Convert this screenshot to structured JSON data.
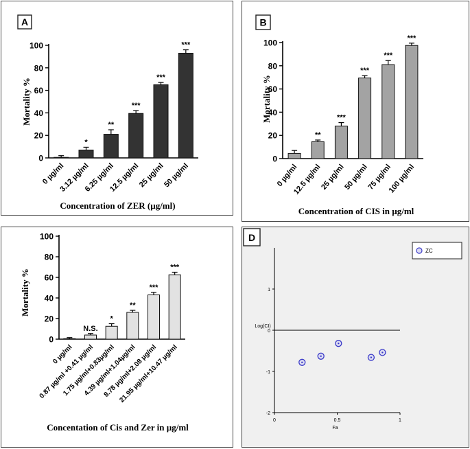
{
  "chart_data": [
    {
      "type": "bar",
      "panel_label": "A",
      "xlabel": "Concentration of ZER (µg/ml)",
      "ylabel": "Mortality %",
      "ylim": [
        0,
        100
      ],
      "yticks": [
        0,
        20,
        40,
        60,
        80,
        100
      ],
      "bar_color": "#333333",
      "categories": [
        "0 µg/ml",
        "3.12 µg/ml",
        "6.25 µg/ml",
        "12.5 µg/ml",
        "25 µg/ml",
        "50 µg/ml"
      ],
      "values": [
        0.5,
        7,
        21,
        39.5,
        65,
        93
      ],
      "errors": [
        1.5,
        2.5,
        4,
        2.5,
        2,
        3
      ],
      "significance": [
        "",
        "*",
        "**",
        "***",
        "***",
        "***"
      ]
    },
    {
      "type": "bar",
      "panel_label": "B",
      "xlabel": "Concentration of CIS in µg/ml",
      "ylabel": "Mortality %",
      "ylim": [
        0,
        100
      ],
      "yticks": [
        0,
        20,
        40,
        60,
        80,
        100
      ],
      "bar_color": "#a3a3a3",
      "categories": [
        "0 µg/ml",
        "12.5 µg/ml",
        "25 µg/ml",
        "50 µg/ml",
        "75 µg/ml",
        "100 µg/ml"
      ],
      "values": [
        4.5,
        14.5,
        28,
        69.5,
        81,
        97.5
      ],
      "errors": [
        2.5,
        1.5,
        3,
        2,
        3.5,
        2
      ],
      "significance": [
        "",
        "**",
        "***",
        "***",
        "***",
        "***"
      ]
    },
    {
      "type": "bar",
      "panel_label": "",
      "xlabel": "Concentation of Cis and Zer in µg/ml",
      "ylabel": "Mortality %",
      "ylim": [
        0,
        100
      ],
      "yticks": [
        0,
        20,
        40,
        60,
        80,
        100
      ],
      "bar_color": "#e2e2e2",
      "categories": [
        "0 µg/ml",
        "0.87 µg/ml +0.41 µg/ml",
        "1.75 µg/ml+0.83µg/ml",
        "4.39 µg/ml+1.04µg/ml",
        "8.78 µg/ml+2.08 µg/ml",
        "21.95 µg/ml+10.47 µg/ml"
      ],
      "values": [
        0.5,
        4,
        12.5,
        26,
        43,
        62.5
      ],
      "errors": [
        1,
        1.5,
        2.5,
        2,
        2.5,
        2.5
      ],
      "significance": [
        "",
        "N.S.",
        "*",
        "**",
        "***",
        "***"
      ]
    },
    {
      "type": "scatter",
      "panel_label": "D",
      "xlabel": "Fa",
      "ylabel": "Log(CI)",
      "xlim": [
        0,
        1
      ],
      "ylim": [
        -2,
        2
      ],
      "xticks": [
        0,
        0.5,
        1
      ],
      "xtick_labels": [
        "0",
        "0.5",
        "1"
      ],
      "yticks": [
        1,
        0,
        -1,
        -2
      ],
      "ytick_labels": [
        "1",
        "0",
        "-1",
        "-2"
      ],
      "reference_line_y": 0,
      "series": [
        {
          "name": "ZC",
          "x": [
            0.22,
            0.37,
            0.51,
            0.77,
            0.86
          ],
          "y": [
            -0.78,
            -0.63,
            -0.32,
            -0.66,
            -0.54
          ]
        }
      ],
      "legend_position": "top-right",
      "marker_color": "#3a3ac8",
      "background_color": "#f0f0f0"
    }
  ]
}
